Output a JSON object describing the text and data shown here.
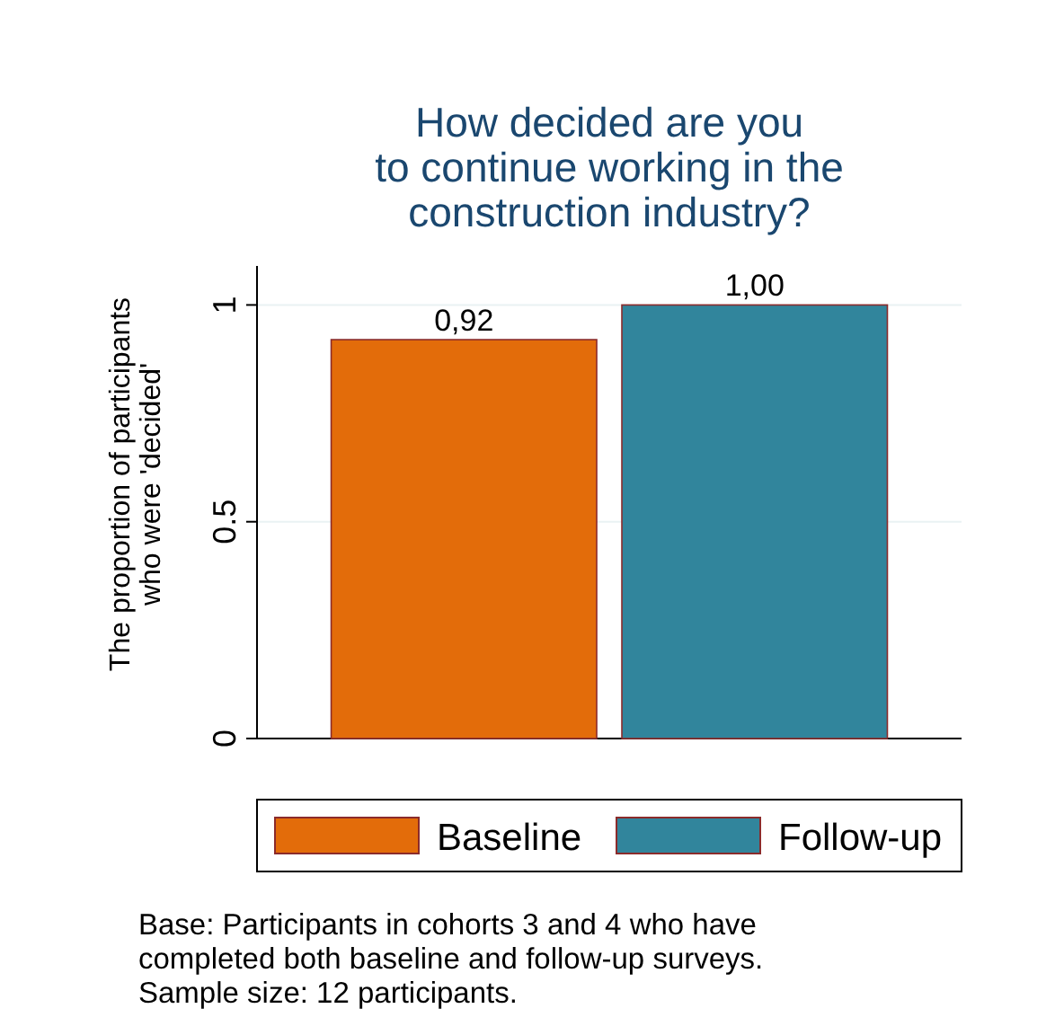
{
  "chart_data": {
    "type": "bar",
    "title": "How decided are you\nto continue working in the\nconstruction industry?",
    "ylabel": "The proportion of participants\nwho were 'decided'",
    "categories": [
      null
    ],
    "series": [
      {
        "name": "Baseline",
        "color": "#e36c0a",
        "values": [
          0.92
        ],
        "value_labels": [
          "0,92"
        ]
      },
      {
        "name": "Follow-up",
        "color": "#31859c",
        "values": [
          1.0
        ],
        "value_labels": [
          "1,00"
        ]
      }
    ],
    "ylim": [
      0,
      1.09
    ],
    "yticks": [
      0,
      0.5,
      1
    ],
    "grid": "y",
    "legend": "bottom",
    "annotations": [
      "Base: Participants in cohorts 3 and 4 who have",
      "completed both baseline and follow-up surveys.",
      "Sample size: 12 participants."
    ]
  }
}
